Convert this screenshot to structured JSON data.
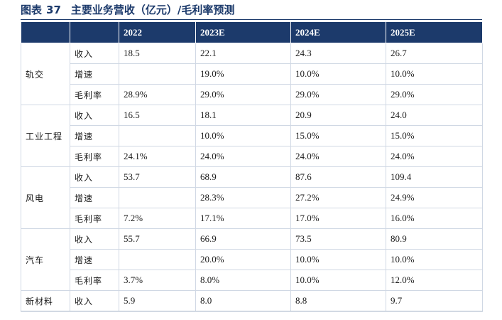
{
  "title": {
    "label": "图表",
    "number": "37",
    "text": "主要业务营收（亿元）/毛利率预测"
  },
  "columns": [
    "",
    "",
    "2022",
    "2023E",
    "2024E",
    "2025E"
  ],
  "segments": [
    {
      "name": "轨交",
      "rows": [
        {
          "metric": "收入",
          "values": [
            "18.5",
            "22.1",
            "24.3",
            "26.7"
          ]
        },
        {
          "metric": "增速",
          "values": [
            "",
            "19.0%",
            "10.0%",
            "10.0%"
          ]
        },
        {
          "metric": "毛利率",
          "values": [
            "28.9%",
            "29.0%",
            "29.0%",
            "29.0%"
          ]
        }
      ]
    },
    {
      "name": "工业工程",
      "rows": [
        {
          "metric": "收入",
          "values": [
            "16.5",
            "18.1",
            "20.9",
            "24.0"
          ]
        },
        {
          "metric": "增速",
          "values": [
            "",
            "10.0%",
            "15.0%",
            "15.0%"
          ]
        },
        {
          "metric": "毛利率",
          "values": [
            "24.1%",
            "24.0%",
            "24.0%",
            "24.0%"
          ]
        }
      ]
    },
    {
      "name": "风电",
      "rows": [
        {
          "metric": "收入",
          "values": [
            "53.7",
            "68.9",
            "87.6",
            "109.4"
          ]
        },
        {
          "metric": "增速",
          "values": [
            "",
            "28.3%",
            "27.2%",
            "24.9%"
          ]
        },
        {
          "metric": "毛利率",
          "values": [
            "7.2%",
            "17.1%",
            "17.0%",
            "16.0%"
          ]
        }
      ]
    },
    {
      "name": "汽车",
      "rows": [
        {
          "metric": "收入",
          "values": [
            "55.7",
            "66.9",
            "73.5",
            "80.9"
          ]
        },
        {
          "metric": "增速",
          "values": [
            "",
            "20.0%",
            "10.0%",
            "10.0%"
          ]
        },
        {
          "metric": "毛利率",
          "values": [
            "3.7%",
            "8.0%",
            "10.0%",
            "12.0%"
          ]
        }
      ]
    },
    {
      "name": "新材料",
      "rows": [
        {
          "metric": "收入",
          "values": [
            "5.9",
            "8.0",
            "8.8",
            "9.7"
          ]
        }
      ]
    }
  ],
  "colors": {
    "header_bg": "#1c3a6b",
    "header_text": "#ffffff",
    "title_text": "#1c3a6b",
    "cell_border": "#d0d8e4"
  }
}
